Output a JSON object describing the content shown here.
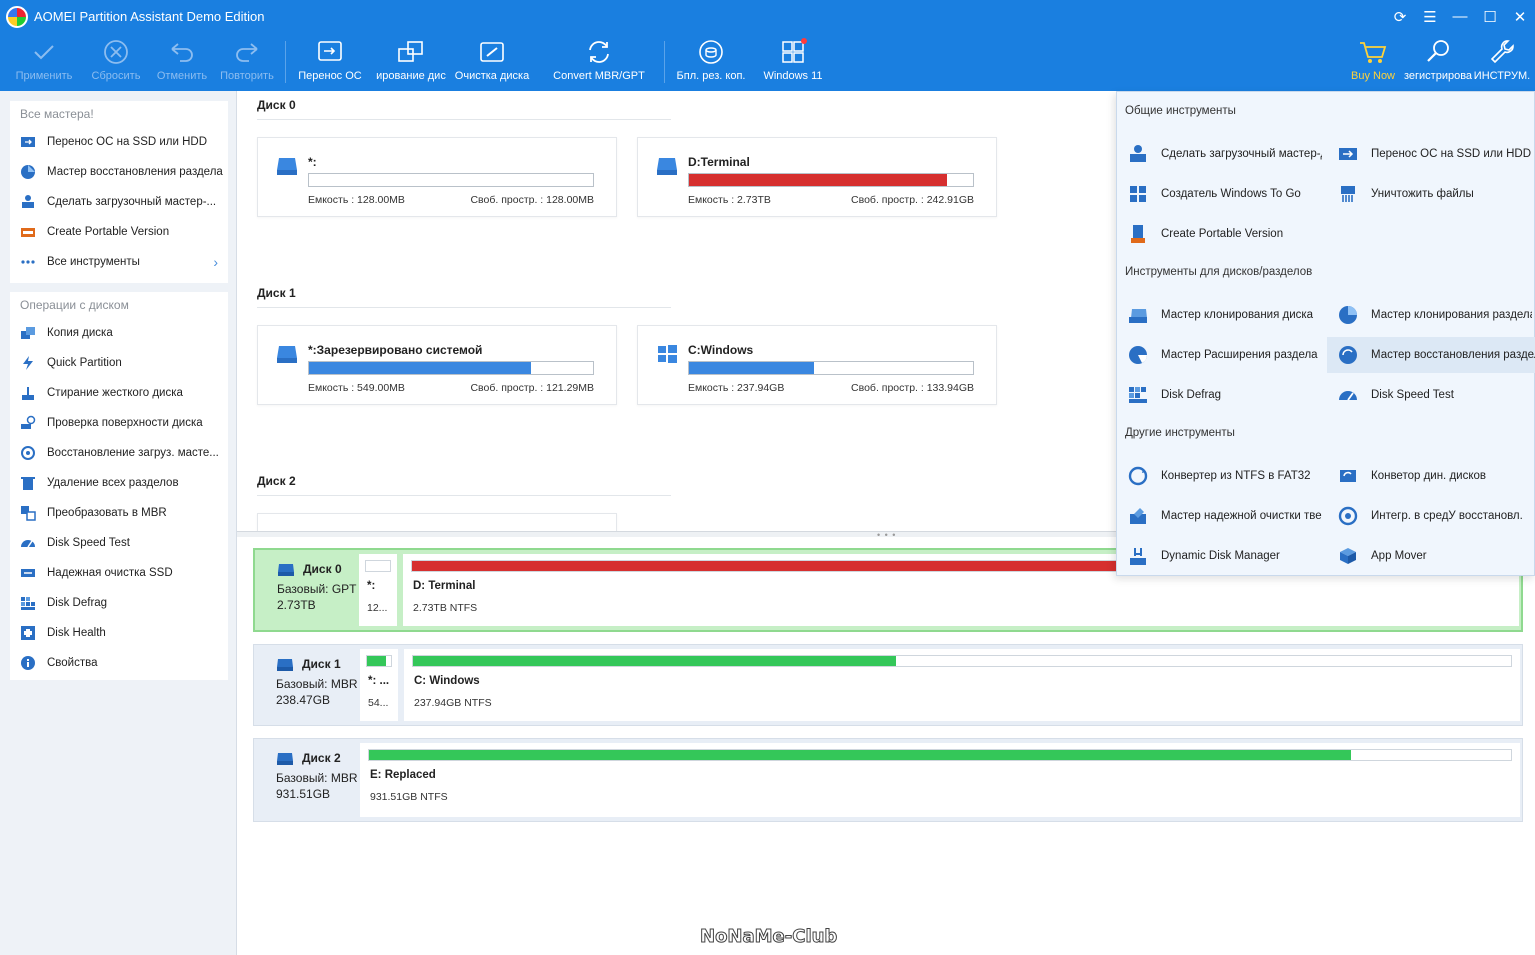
{
  "window": {
    "title": "AOMEI Partition Assistant Demo Edition",
    "controls": [
      "refresh-icon",
      "menu-icon",
      "minimize-icon",
      "maximize-icon",
      "close-icon"
    ]
  },
  "toolbar": {
    "apply": "Применить",
    "discard": "Сбросить",
    "undo": "Отменить",
    "redo": "Повторить",
    "migrate_os": "Перенос ОС",
    "clone_disk": "ирование дис",
    "wipe_disk": "Очистка диска",
    "convert": "Convert MBR/GPT",
    "backup": "Бпл. рез. коп.",
    "win11": "Windows 11",
    "buy": "Buy Now",
    "register": "зегистрирова",
    "tools": "ИНСТРУМ."
  },
  "sidebar": {
    "wizards_header": "Все мастера!",
    "wizards": [
      {
        "label": "Перенос ОС на SSD или HDD",
        "icon": "migrate-icon"
      },
      {
        "label": "Мастер восстановления раздела",
        "icon": "partition-recovery-icon"
      },
      {
        "label": "Сделать загрузочный мастер-...",
        "icon": "bootable-media-icon"
      },
      {
        "label": "Create Portable Version",
        "icon": "portable-icon"
      },
      {
        "label": "Все инструменты",
        "icon": "all-tools-icon"
      }
    ],
    "disk_ops_header": "Операции с диском",
    "disk_ops": [
      {
        "label": "Копия диска",
        "icon": "disk-copy-icon"
      },
      {
        "label": "Quick Partition",
        "icon": "quick-partition-icon"
      },
      {
        "label": "Стирание жесткого диска",
        "icon": "wipe-disk-icon"
      },
      {
        "label": "Проверка поверхности диска",
        "icon": "surface-test-icon"
      },
      {
        "label": "Восстановление загруз. масте...",
        "icon": "rebuild-mbr-icon"
      },
      {
        "label": "Удаление всех разделов",
        "icon": "delete-partitions-icon"
      },
      {
        "label": "Преобразовать в MBR",
        "icon": "convert-mbr-icon"
      },
      {
        "label": "Disk Speed Test",
        "icon": "speed-test-icon"
      },
      {
        "label": "Надежная очистка SSD",
        "icon": "ssd-erase-icon"
      },
      {
        "label": "Disk Defrag",
        "icon": "defrag-icon"
      },
      {
        "label": "Disk Health",
        "icon": "disk-health-icon"
      },
      {
        "label": "Свойства",
        "icon": "properties-icon"
      }
    ]
  },
  "disks_view": {
    "disk0": {
      "title": "Диск 0",
      "parts": [
        {
          "name": "*:",
          "capacity": "Емкость : 128.00MB",
          "free": "Своб. простр. : 128.00MB",
          "used": 0.0,
          "color": "#d62f2f",
          "icon": "drive-icon"
        },
        {
          "name": "D:Terminal",
          "capacity": "Емкость : 2.73TB",
          "free": "Своб. простр. : 242.91GB",
          "used": 0.91,
          "color": "#d62f2f",
          "icon": "drive-icon"
        }
      ]
    },
    "disk1": {
      "title": "Диск 1",
      "parts": [
        {
          "name": "*:Зарезервировано системой",
          "capacity": "Емкость : 549.00MB",
          "free": "Своб. простр. : 121.29MB",
          "used": 0.78,
          "color": "#3a87e0",
          "icon": "drive-icon"
        },
        {
          "name": "C:Windows",
          "capacity": "Емкость : 237.94GB",
          "free": "Своб. простр. : 133.94GB",
          "used": 0.44,
          "color": "#3a87e0",
          "icon": "windows-icon"
        }
      ]
    },
    "disk2": {
      "title": "Диск 2"
    }
  },
  "disk_map": [
    {
      "name": "Диск 0",
      "type": "Базовый: GPT",
      "size": "2.73TB",
      "small": {
        "name": "*:",
        "desc": "12...",
        "used": 0.0
      },
      "main": {
        "name": "D: Terminal",
        "desc": "2.73TB NTFS",
        "used": 0.91,
        "color": "#d62f2f"
      }
    },
    {
      "name": "Диск 1",
      "type": "Базовый: MBR",
      "size": "238.47GB",
      "small": {
        "name": "*: ...",
        "desc": "54...",
        "used": 0.8
      },
      "main": {
        "name": "C: Windows",
        "desc": "237.94GB NTFS",
        "used": 0.44,
        "color": "#34c759"
      }
    },
    {
      "name": "Диск 2",
      "type": "Базовый: MBR",
      "size": "931.51GB",
      "main": {
        "name": "E: Replaced",
        "desc": "931.51GB NTFS",
        "used": 0.86,
        "color": "#34c759"
      }
    }
  ],
  "flyout": {
    "general_header": "Общие инструменты",
    "general": [
      {
        "label": "Сделать загрузочный мастер-ди",
        "icon": "bootable-media-icon"
      },
      {
        "label": "Перенос ОС на SSD или HDD",
        "icon": "migrate-icon"
      },
      {
        "label": "Создатель Windows To Go",
        "icon": "windows-icon"
      },
      {
        "label": "Уничтожить файлы",
        "icon": "shred-icon"
      },
      {
        "label": "Create Portable Version",
        "icon": "portable-icon"
      }
    ],
    "disk_header": "Инструменты для дисков/разделов",
    "disk": [
      {
        "label": "Мастер клонирования диска",
        "icon": "disk-clone-icon"
      },
      {
        "label": "Мастер клонирования раздела",
        "icon": "partition-clone-icon"
      },
      {
        "label": "Мастер Расширения раздела",
        "icon": "extend-partition-icon"
      },
      {
        "label": "Мастер восстановления раздела",
        "icon": "partition-recovery-icon"
      },
      {
        "label": "Disk Defrag",
        "icon": "defrag-icon"
      },
      {
        "label": "Disk Speed Test",
        "icon": "speed-test-icon"
      }
    ],
    "other_header": "Другие инструменты",
    "other": [
      {
        "label": "Конвертер из NTFS в FAT32",
        "icon": "ntfs-fat32-icon"
      },
      {
        "label": "Конветор дин. дисков",
        "icon": "dynamic-convert-icon"
      },
      {
        "label": "Мастер надежной очистки твердо",
        "icon": "ssd-erase-icon"
      },
      {
        "label": "Интегр. в средУ восстановл.",
        "icon": "recovery-env-icon"
      },
      {
        "label": "Dynamic Disk Manager",
        "icon": "dynamic-disk-icon"
      },
      {
        "label": "App Mover",
        "icon": "app-mover-icon"
      }
    ]
  },
  "watermark": "NoNaMe-Club",
  "colors": {
    "accent": "#1a7fe0",
    "red": "#d62f2f",
    "blue": "#3a87e0",
    "green": "#34c759",
    "selected_row": "#c6efc6"
  }
}
